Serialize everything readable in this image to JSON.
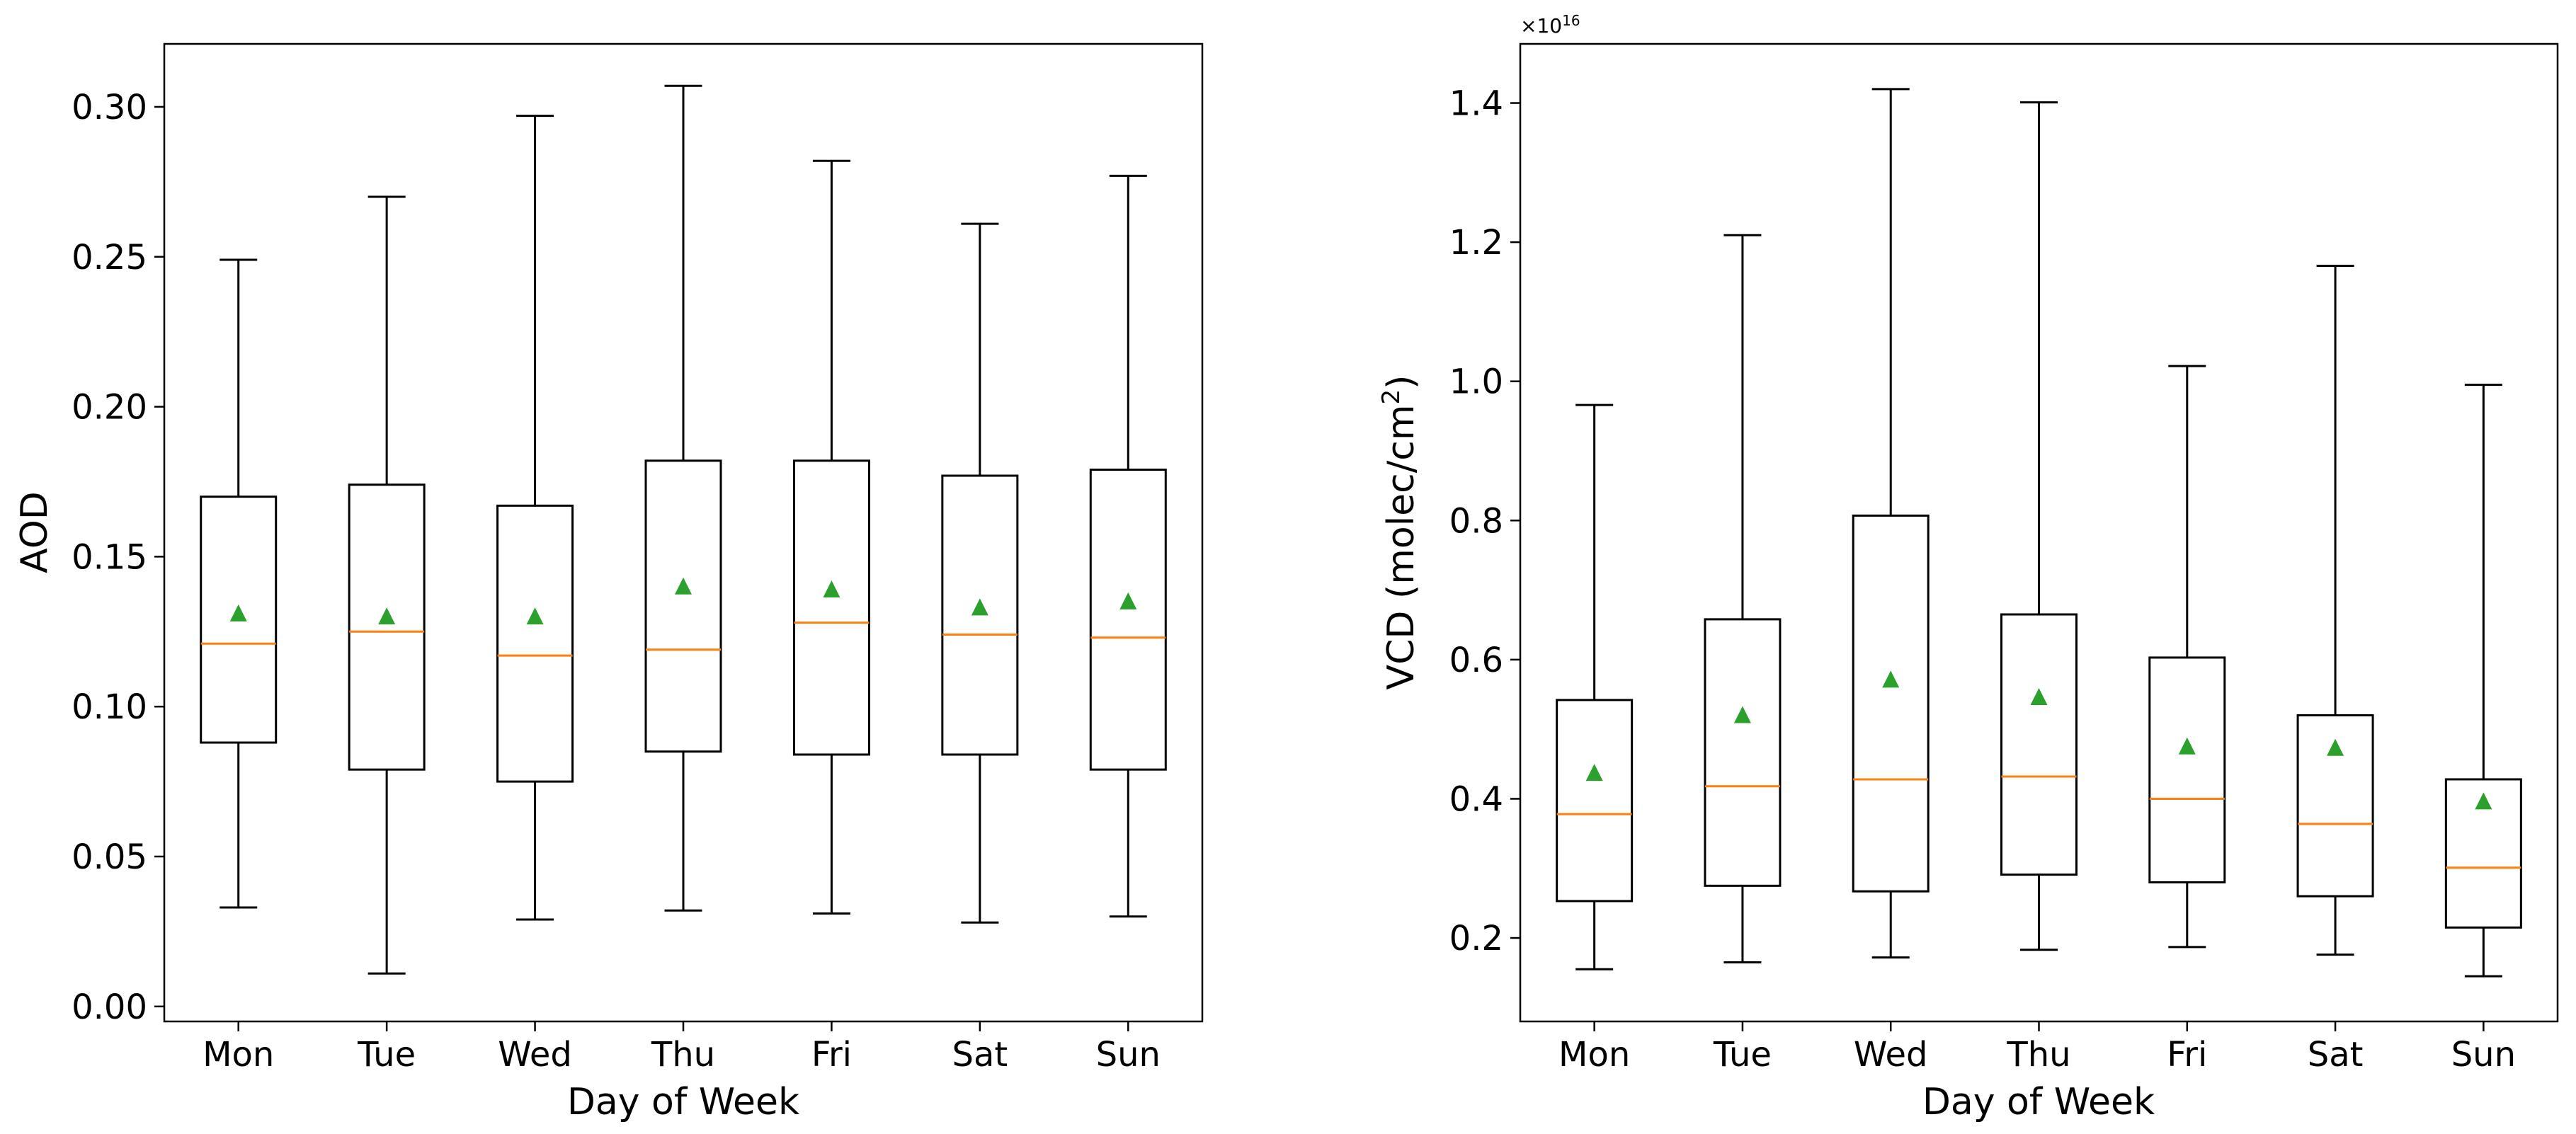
{
  "chart_data": [
    {
      "type": "box",
      "title": "",
      "xlabel": "Day of Week",
      "ylabel": "AOD",
      "categories": [
        "Mon",
        "Tue",
        "Wed",
        "Thu",
        "Fri",
        "Sat",
        "Sun"
      ],
      "ylim": [
        -0.005,
        0.321
      ],
      "yticks": [
        0.0,
        0.05,
        0.1,
        0.15,
        0.2,
        0.25,
        0.3
      ],
      "ytick_labels": [
        "0.00",
        "0.05",
        "0.10",
        "0.15",
        "0.20",
        "0.25",
        "0.30"
      ],
      "boxes": [
        {
          "whisker_low": 0.033,
          "q1": 0.088,
          "median": 0.121,
          "q3": 0.17,
          "whisker_high": 0.249,
          "mean": 0.131
        },
        {
          "whisker_low": 0.011,
          "q1": 0.079,
          "median": 0.125,
          "q3": 0.174,
          "whisker_high": 0.27,
          "mean": 0.13
        },
        {
          "whisker_low": 0.029,
          "q1": 0.075,
          "median": 0.117,
          "q3": 0.167,
          "whisker_high": 0.297,
          "mean": 0.13
        },
        {
          "whisker_low": 0.032,
          "q1": 0.085,
          "median": 0.119,
          "q3": 0.182,
          "whisker_high": 0.307,
          "mean": 0.14
        },
        {
          "whisker_low": 0.031,
          "q1": 0.084,
          "median": 0.128,
          "q3": 0.182,
          "whisker_high": 0.282,
          "mean": 0.139
        },
        {
          "whisker_low": 0.028,
          "q1": 0.084,
          "median": 0.124,
          "q3": 0.177,
          "whisker_high": 0.261,
          "mean": 0.133
        },
        {
          "whisker_low": 0.03,
          "q1": 0.079,
          "median": 0.123,
          "q3": 0.179,
          "whisker_high": 0.277,
          "mean": 0.135
        }
      ],
      "colors": {
        "box": "#000000",
        "median": "#ff7f0e",
        "mean": "#2ca02c"
      }
    },
    {
      "type": "box",
      "title": "",
      "xlabel": "Day of Week",
      "ylabel": "VCD (molec/cm",
      "ylabel_sup": "2",
      "ylabel_end": ")",
      "offset_text_prefix": "×10",
      "offset_text_exp": "16",
      "categories": [
        "Mon",
        "Tue",
        "Wed",
        "Thu",
        "Fri",
        "Sat",
        "Sun"
      ],
      "ylim": [
        0.08,
        1.485
      ],
      "yticks": [
        0.2,
        0.4,
        0.6,
        0.8,
        1.0,
        1.2,
        1.4
      ],
      "ytick_labels": [
        "0.2",
        "0.4",
        "0.6",
        "0.8",
        "1.0",
        "1.2",
        "1.4"
      ],
      "boxes": [
        {
          "whisker_low": 0.155,
          "q1": 0.253,
          "median": 0.378,
          "q3": 0.542,
          "whisker_high": 0.966,
          "mean": 0.437
        },
        {
          "whisker_low": 0.165,
          "q1": 0.275,
          "median": 0.418,
          "q3": 0.658,
          "whisker_high": 1.21,
          "mean": 0.52
        },
        {
          "whisker_low": 0.172,
          "q1": 0.267,
          "median": 0.428,
          "q3": 0.807,
          "whisker_high": 1.42,
          "mean": 0.571
        },
        {
          "whisker_low": 0.183,
          "q1": 0.291,
          "median": 0.432,
          "q3": 0.665,
          "whisker_high": 1.401,
          "mean": 0.546
        },
        {
          "whisker_low": 0.187,
          "q1": 0.28,
          "median": 0.4,
          "q3": 0.603,
          "whisker_high": 1.022,
          "mean": 0.475
        },
        {
          "whisker_low": 0.176,
          "q1": 0.26,
          "median": 0.364,
          "q3": 0.52,
          "whisker_high": 1.166,
          "mean": 0.473
        },
        {
          "whisker_low": 0.145,
          "q1": 0.215,
          "median": 0.301,
          "q3": 0.428,
          "whisker_high": 0.995,
          "mean": 0.396
        }
      ],
      "colors": {
        "box": "#000000",
        "median": "#ff7f0e",
        "mean": "#2ca02c"
      }
    }
  ]
}
